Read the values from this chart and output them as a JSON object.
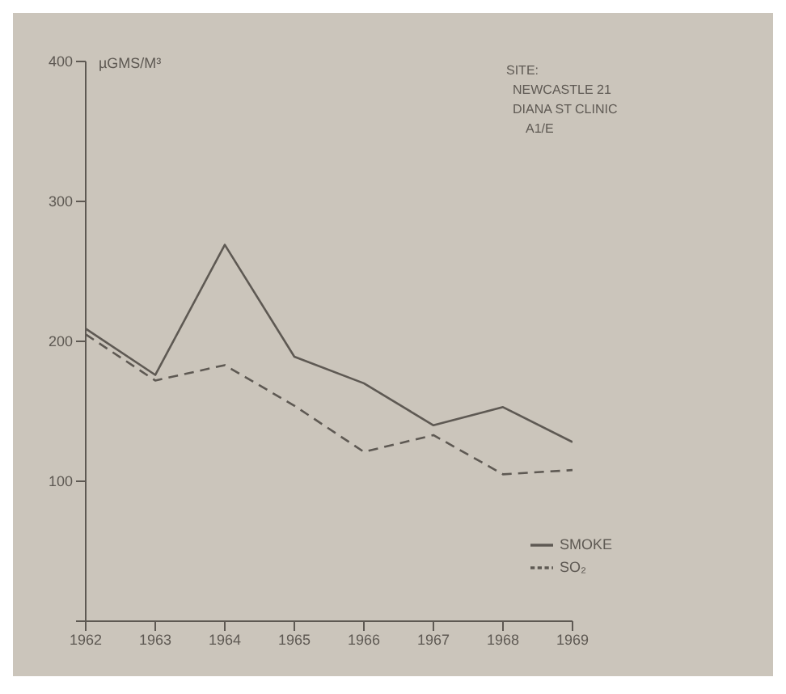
{
  "chart_data": {
    "type": "line",
    "ylabel": "µGMS/M³",
    "x": [
      1962,
      1963,
      1964,
      1965,
      1966,
      1967,
      1968,
      1969
    ],
    "xlim": [
      1962,
      1969
    ],
    "xticks": [
      1962,
      1963,
      1964,
      1965,
      1966,
      1967,
      1968,
      1969
    ],
    "ylim": [
      0,
      400
    ],
    "yticks": [
      {
        "value": 0,
        "label": null
      },
      100,
      200,
      300,
      400
    ],
    "grid": false,
    "legend": "bottom right",
    "marker": "none",
    "annotations": [
      "SITE:",
      "NEWCASTLE 21",
      "DIANA ST CLINIC",
      "A1/E"
    ],
    "series": [
      {
        "name": "SMOKE",
        "color": "#5e5953",
        "line_style": "solid",
        "values": [
          209,
          176,
          269,
          189,
          170,
          140,
          153,
          128
        ]
      },
      {
        "name": "SO₂",
        "color": "#5e5953",
        "line_style": "dashed",
        "values": [
          205,
          172,
          183,
          154,
          121,
          133,
          105,
          108
        ]
      }
    ]
  }
}
